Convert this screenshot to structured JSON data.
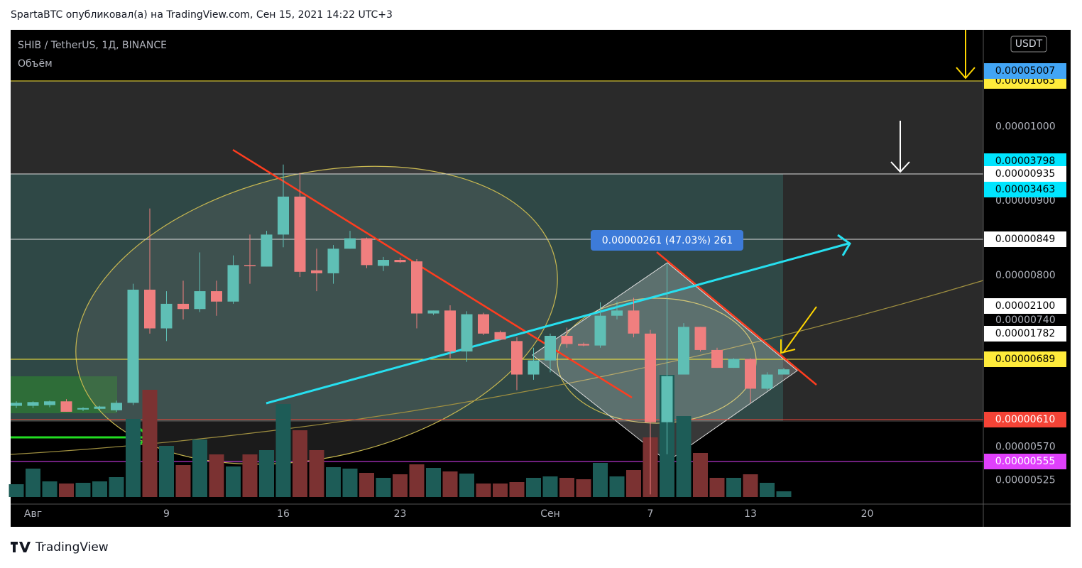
{
  "header": {
    "attribution": "SpartaBTC опубликовал(а) на TradingView.com, Сен 15, 2021 14:22 UTC+3"
  },
  "footer": {
    "brand": "TradingView"
  },
  "chart_data": {
    "type": "candlestick",
    "title": "SHIB / TetherUS, 1Д, BINANCE",
    "subtitle": "Объём",
    "currency": "USDT",
    "annotation": "0.00000261 (47.03%) 261",
    "x": [
      "2021-07-31",
      "2021-08-01",
      "2021-08-02",
      "2021-08-03",
      "2021-08-04",
      "2021-08-05",
      "2021-08-06",
      "2021-08-07",
      "2021-08-08",
      "2021-08-09",
      "2021-08-10",
      "2021-08-11",
      "2021-08-12",
      "2021-08-13",
      "2021-08-14",
      "2021-08-15",
      "2021-08-16",
      "2021-08-17",
      "2021-08-18",
      "2021-08-19",
      "2021-08-20",
      "2021-08-21",
      "2021-08-22",
      "2021-08-23",
      "2021-08-24",
      "2021-08-25",
      "2021-08-26",
      "2021-08-27",
      "2021-08-28",
      "2021-08-29",
      "2021-08-30",
      "2021-08-31",
      "2021-09-01",
      "2021-09-02",
      "2021-09-03",
      "2021-09-04",
      "2021-09-05",
      "2021-09-06",
      "2021-09-07",
      "2021-09-08",
      "2021-09-09",
      "2021-09-10",
      "2021-09-11",
      "2021-09-12",
      "2021-09-13",
      "2021-09-14",
      "2021-09-15"
    ],
    "open": [
      6.25e-06,
      6.25e-06,
      6.26e-06,
      6.31e-06,
      6.2e-06,
      6.21e-06,
      6.19e-06,
      6.29e-06,
      7.81e-06,
      7.29e-06,
      7.62e-06,
      7.55e-06,
      7.79e-06,
      7.65e-06,
      8.14e-06,
      8.12e-06,
      8.55e-06,
      9.06e-06,
      8.07e-06,
      8.03e-06,
      8.36e-06,
      8.5e-06,
      8.13e-06,
      8.21e-06,
      8.19e-06,
      7.49e-06,
      7.53e-06,
      6.98e-06,
      7.48e-06,
      7.24e-06,
      7.12e-06,
      6.67e-06,
      6.86e-06,
      7.19e-06,
      7.08e-06,
      7.06e-06,
      7.46e-06,
      7.53e-06,
      7.22e-06,
      6.03e-06,
      6.67e-06,
      7.31e-06,
      7e-06,
      6.76e-06,
      6.88e-06,
      6.48e-06,
      6.67e-06
    ],
    "high": [
      6.31e-06,
      6.31e-06,
      6.32e-06,
      6.34e-06,
      6.23e-06,
      6.25e-06,
      6.32e-06,
      7.89e-06,
      8.9e-06,
      7.79e-06,
      7.93e-06,
      8.31e-06,
      7.93e-06,
      8.27e-06,
      8.55e-06,
      8.6e-06,
      9.49e-06,
      9.38e-06,
      8.36e-06,
      8.41e-06,
      8.6e-06,
      8.51e-06,
      8.25e-06,
      8.24e-06,
      8.22e-06,
      7.53e-06,
      7.6e-06,
      7.52e-06,
      7.5e-06,
      7.26e-06,
      7.17e-06,
      7.03e-06,
      7.22e-06,
      7.3e-06,
      7.1e-06,
      7.64e-06,
      7.65e-06,
      7.7e-06,
      7.27e-06,
      8.17e-06,
      7.36e-06,
      7.31e-06,
      7.03e-06,
      6.89e-06,
      6.89e-06,
      6.7e-06,
      6.76e-06
    ],
    "low": [
      6.22e-06,
      6.22e-06,
      6.23e-06,
      6.17e-06,
      6.18e-06,
      6.19e-06,
      6.17e-06,
      6.26e-06,
      7.22e-06,
      7.12e-06,
      7.41e-06,
      7.51e-06,
      7.46e-06,
      7.62e-06,
      7.89e-06,
      8.12e-06,
      8.38e-06,
      7.98e-06,
      7.79e-06,
      7.89e-06,
      8.36e-06,
      8.1e-06,
      8.06e-06,
      8.17e-06,
      7.29e-06,
      7.47e-06,
      6.89e-06,
      6.84e-06,
      7.2e-06,
      7.13e-06,
      6.46e-06,
      6.6e-06,
      6.7e-06,
      7.03e-06,
      7.05e-06,
      7.03e-06,
      7.41e-06,
      7.17e-06,
      5.06e-06,
      5.6e-06,
      6.67e-06,
      6.98e-06,
      6.76e-06,
      6.76e-06,
      6.29e-06,
      6.46e-06,
      6.67e-06
    ],
    "close": [
      6.29e-06,
      6.3e-06,
      6.31e-06,
      6.17e-06,
      6.22e-06,
      6.24e-06,
      6.29e-06,
      7.81e-06,
      7.29e-06,
      7.62e-06,
      7.55e-06,
      7.79e-06,
      7.65e-06,
      8.14e-06,
      8.13e-06,
      8.55e-06,
      9.06e-06,
      8.05e-06,
      8.03e-06,
      8.36e-06,
      8.5e-06,
      8.14e-06,
      8.21e-06,
      8.18e-06,
      7.49e-06,
      7.53e-06,
      6.98e-06,
      7.48e-06,
      7.22e-06,
      7.14e-06,
      6.67e-06,
      6.86e-06,
      7.19e-06,
      7.08e-06,
      7.06e-06,
      7.46e-06,
      7.53e-06,
      7.22e-06,
      6.03e-06,
      6.65e-06,
      7.31e-06,
      7e-06,
      6.76e-06,
      6.88e-06,
      6.48e-06,
      6.67e-06,
      6.74e-06
    ],
    "volume": [
      18,
      40,
      22,
      19,
      20,
      22,
      28,
      110,
      151,
      72,
      45,
      81,
      60,
      43,
      60,
      66,
      131,
      94,
      66,
      42,
      40,
      34,
      27,
      32,
      46,
      41,
      36,
      33,
      19,
      19,
      21,
      27,
      29,
      27,
      25,
      48,
      29,
      38,
      84,
      172,
      114,
      62,
      27,
      27,
      32,
      20,
      8
    ],
    "up_color": "#5fbfb5",
    "down_color": "#f07f7f",
    "up_volume_color": "#1d5c57",
    "down_volume_color": "#7b3232",
    "ylim": [
      4.93e-06,
      1.13e-05
    ],
    "yticks": [
      {
        "value": 1e-05,
        "label": "0.00001000"
      },
      {
        "value": 9e-06,
        "label": "0.00000900"
      },
      {
        "value": 8e-06,
        "label": "0.00000800"
      },
      {
        "value": 7.4e-06,
        "label": "0.00000740"
      },
      {
        "value": 5.7e-06,
        "label": "0.00000570"
      },
      {
        "value": 5.25e-06,
        "label": "0.00000525"
      }
    ],
    "xticks": [
      {
        "value": "2021-08-01",
        "label": "Авг"
      },
      {
        "value": "2021-08-09",
        "label": "9"
      },
      {
        "value": "2021-08-16",
        "label": "16"
      },
      {
        "value": "2021-08-23",
        "label": "23"
      },
      {
        "value": "2021-09-01",
        "label": "Сен"
      },
      {
        "value": "2021-09-07",
        "label": "7"
      },
      {
        "value": "2021-09-13",
        "label": "13"
      },
      {
        "value": "2021-09-20",
        "label": "20"
      }
    ],
    "price_labels": [
      {
        "label": "0.00001063",
        "color": "#ffeb3b",
        "text_color": "#000000"
      },
      {
        "label": "0.00005007",
        "color": "#42a5f5",
        "text_color": "#000000"
      },
      {
        "label": "0.00003798",
        "color": "#00e5ff",
        "text_color": "#000000"
      },
      {
        "label": "0.00003463",
        "color": "#00e5ff",
        "text_color": "#000000"
      },
      {
        "label": "0.00000935",
        "color": "#ffffff",
        "text_color": "#000000"
      },
      {
        "label": "0.00000849",
        "color": "#ffffff",
        "text_color": "#000000"
      },
      {
        "label": "0.00002100",
        "color": "#ffffff",
        "text_color": "#000000"
      },
      {
        "label": "0.00001782",
        "color": "#ffffff",
        "text_color": "#000000"
      },
      {
        "label": "0.00000689",
        "color": "#ffeb3b",
        "text_color": "#000000"
      },
      {
        "label": "0.00000610",
        "color": "#f44336",
        "text_color": "#ffffff"
      },
      {
        "label": "0.00000555",
        "color": "#e040fb",
        "text_color": "#ffffff"
      }
    ]
  }
}
